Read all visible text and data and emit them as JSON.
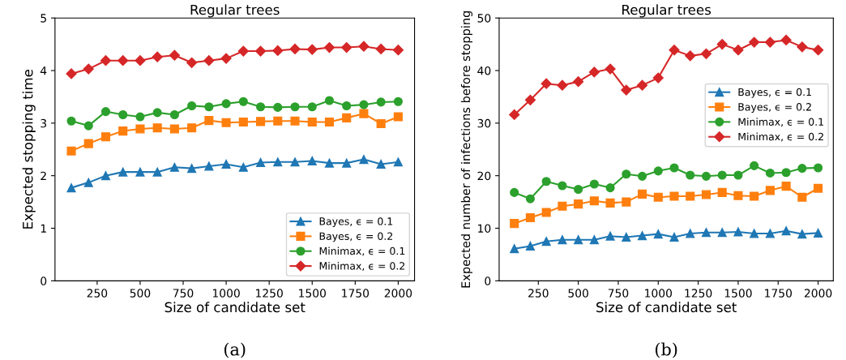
{
  "chart_data": [
    {
      "type": "line",
      "title": "Regular trees",
      "xlabel": "Size of candidate set",
      "ylabel": "Expected stopping time",
      "annotations": [
        "(a)"
      ],
      "x": [
        100,
        200,
        300,
        400,
        500,
        600,
        700,
        800,
        900,
        1000,
        1100,
        1200,
        1300,
        1400,
        1500,
        1600,
        1700,
        1800,
        1900,
        2000
      ],
      "xlim": [
        5,
        2095
      ],
      "xticks": [
        250,
        500,
        750,
        1000,
        1250,
        1500,
        1750,
        2000
      ],
      "ylim": [
        0,
        5
      ],
      "yticks": [
        0,
        1,
        2,
        3,
        4,
        5
      ],
      "grid": false,
      "legend": "bottom right",
      "series": [
        {
          "name": "Bayes, ϵ = 0.1",
          "color": "#1f77b4",
          "marker": "triangle",
          "values": [
            1.77,
            1.87,
            2.0,
            2.07,
            2.07,
            2.07,
            2.16,
            2.14,
            2.18,
            2.22,
            2.16,
            2.25,
            2.26,
            2.26,
            2.28,
            2.24,
            2.24,
            2.31,
            2.22,
            2.26
          ]
        },
        {
          "name": "Bayes, ϵ = 0.2",
          "color": "#ff7f0e",
          "marker": "square",
          "values": [
            2.47,
            2.61,
            2.74,
            2.85,
            2.89,
            2.91,
            2.89,
            2.91,
            3.05,
            3.01,
            3.02,
            3.03,
            3.04,
            3.04,
            3.02,
            3.02,
            3.1,
            3.18,
            2.99,
            3.12
          ]
        },
        {
          "name": "Minimax, ϵ = 0.1",
          "color": "#2ca02c",
          "marker": "circle",
          "values": [
            3.04,
            2.95,
            3.22,
            3.16,
            3.12,
            3.2,
            3.16,
            3.33,
            3.31,
            3.37,
            3.41,
            3.31,
            3.3,
            3.31,
            3.31,
            3.43,
            3.33,
            3.35,
            3.4,
            3.41
          ]
        },
        {
          "name": "Minimax, ϵ = 0.2",
          "color": "#d62728",
          "marker": "diamond",
          "values": [
            3.94,
            4.03,
            4.19,
            4.19,
            4.19,
            4.26,
            4.29,
            4.15,
            4.19,
            4.23,
            4.37,
            4.37,
            4.38,
            4.41,
            4.4,
            4.44,
            4.44,
            4.46,
            4.41,
            4.39
          ]
        }
      ]
    },
    {
      "type": "line",
      "title": "Regular trees",
      "xlabel": "Size of candidate set",
      "ylabel": "Expected number of infections before stopping",
      "annotations": [
        "(b)"
      ],
      "x": [
        100,
        200,
        300,
        400,
        500,
        600,
        700,
        800,
        900,
        1000,
        1100,
        1200,
        1300,
        1400,
        1500,
        1600,
        1700,
        1800,
        1900,
        2000
      ],
      "xlim": [
        5,
        2095
      ],
      "xticks": [
        250,
        500,
        750,
        1000,
        1250,
        1500,
        1750,
        2000
      ],
      "ylim": [
        0,
        50
      ],
      "yticks": [
        0,
        10,
        20,
        30,
        40,
        50
      ],
      "grid": false,
      "legend": "right",
      "series": [
        {
          "name": "Bayes, ϵ = 0.1",
          "color": "#1f77b4",
          "marker": "triangle",
          "values": [
            6.1,
            6.6,
            7.5,
            7.8,
            7.8,
            7.8,
            8.5,
            8.3,
            8.6,
            8.9,
            8.3,
            9.0,
            9.2,
            9.2,
            9.3,
            9.0,
            9.0,
            9.5,
            8.9,
            9.1
          ]
        },
        {
          "name": "Bayes, ϵ = 0.2",
          "color": "#ff7f0e",
          "marker": "square",
          "values": [
            10.9,
            12.0,
            13.0,
            14.2,
            14.6,
            15.2,
            14.8,
            15.0,
            16.5,
            15.9,
            16.1,
            16.1,
            16.4,
            16.8,
            16.2,
            16.1,
            17.2,
            18.0,
            15.9,
            17.6
          ]
        },
        {
          "name": "Minimax, ϵ = 0.1",
          "color": "#2ca02c",
          "marker": "circle",
          "values": [
            16.8,
            15.6,
            18.9,
            18.1,
            17.4,
            18.4,
            17.7,
            20.3,
            19.9,
            20.9,
            21.5,
            20.1,
            19.9,
            20.1,
            20.1,
            21.9,
            20.5,
            20.6,
            21.4,
            21.5
          ]
        },
        {
          "name": "Minimax, ϵ = 0.2",
          "color": "#d62728",
          "marker": "diamond",
          "values": [
            31.6,
            34.4,
            37.5,
            37.2,
            37.9,
            39.7,
            40.3,
            36.3,
            37.2,
            38.6,
            43.9,
            42.8,
            43.2,
            45.0,
            43.9,
            45.4,
            45.4,
            45.8,
            44.5,
            43.9
          ]
        }
      ]
    }
  ]
}
